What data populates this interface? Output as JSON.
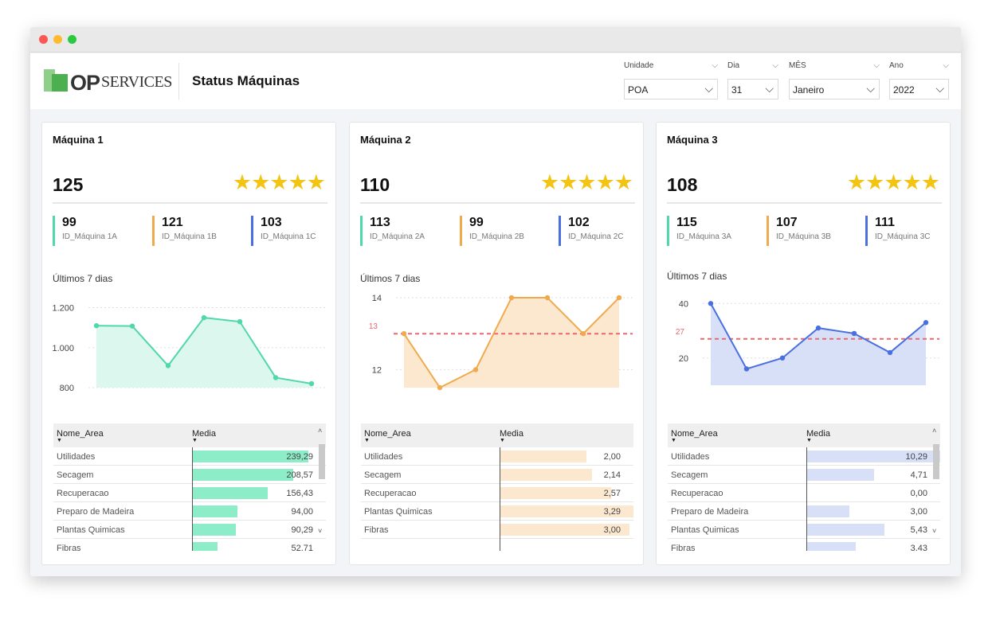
{
  "header": {
    "logo_op": "OP",
    "logo_services": "SERVICES",
    "title": "Status Máquinas"
  },
  "filters": [
    {
      "label": "Unidade",
      "value": "POA"
    },
    {
      "label": "Dia",
      "value": "31"
    },
    {
      "label": "MÊS",
      "value": "Janeiro"
    },
    {
      "label": "Ano",
      "value": "2022"
    }
  ],
  "colors": {
    "green": "#4fd8a8",
    "orange": "#f0aa4e",
    "blue": "#4a6fe0",
    "stars": "#f2c414",
    "target": "#e8686f"
  },
  "cards": [
    {
      "title": "Máquina 1",
      "total": "125",
      "stars": 5,
      "color": "#4fd8a8",
      "kpis": [
        {
          "value": "99",
          "label": "ID_Máquina 1A",
          "color": "#4fd8a8"
        },
        {
          "value": "121",
          "label": "ID_Máquina 1B",
          "color": "#f0aa4e"
        },
        {
          "value": "103",
          "label": "ID_Máquina 1C",
          "color": "#4a6fe0"
        }
      ],
      "chart_title": "Últimos 7 dias",
      "table": {
        "col1": "Nome_Area",
        "col2": "Media",
        "rows": [
          {
            "name": "Utilidades",
            "value": "239,29",
            "num": 239.29
          },
          {
            "name": "Secagem",
            "value": "208,57",
            "num": 208.57
          },
          {
            "name": "Recuperacao",
            "value": "156,43",
            "num": 156.43
          },
          {
            "name": "Preparo de Madeira",
            "value": "94,00",
            "num": 94.0
          },
          {
            "name": "Plantas Quimicas",
            "value": "90,29",
            "num": 90.29
          },
          {
            "name": "Fibras",
            "value": "52,71",
            "num": 52.71
          }
        ]
      }
    },
    {
      "title": "Máquina 2",
      "total": "110",
      "stars": 5,
      "color": "#f0aa4e",
      "kpis": [
        {
          "value": "113",
          "label": "ID_Máquina 2A",
          "color": "#4fd8a8"
        },
        {
          "value": "99",
          "label": "ID_Máquina 2B",
          "color": "#f0aa4e"
        },
        {
          "value": "102",
          "label": "ID_Máquina 2C",
          "color": "#4a6fe0"
        }
      ],
      "chart_title": "Últimos 7 dias",
      "table": {
        "col1": "Nome_Area",
        "col2": "Media",
        "rows": [
          {
            "name": "Utilidades",
            "value": "2,00",
            "num": 2.0
          },
          {
            "name": "Secagem",
            "value": "2,14",
            "num": 2.14
          },
          {
            "name": "Recuperacao",
            "value": "2,57",
            "num": 2.57
          },
          {
            "name": "Plantas Quimicas",
            "value": "3,29",
            "num": 3.29
          },
          {
            "name": "Fibras",
            "value": "3,00",
            "num": 3.0
          }
        ]
      }
    },
    {
      "title": "Máquina 3",
      "total": "108",
      "stars": 5,
      "color": "#4a6fe0",
      "kpis": [
        {
          "value": "115",
          "label": "ID_Máquina 3A",
          "color": "#4fd8a8"
        },
        {
          "value": "107",
          "label": "ID_Máquina 3B",
          "color": "#f0aa4e"
        },
        {
          "value": "111",
          "label": "ID_Máquina 3C",
          "color": "#4a6fe0"
        }
      ],
      "chart_title": "Últimos 7 dias",
      "table": {
        "col1": "Nome_Area",
        "col2": "Media",
        "rows": [
          {
            "name": "Utilidades",
            "value": "10,29",
            "num": 10.29
          },
          {
            "name": "Secagem",
            "value": "4,71",
            "num": 4.71
          },
          {
            "name": "Recuperacao",
            "value": "0,00",
            "num": 0.0
          },
          {
            "name": "Preparo de Madeira",
            "value": "3,00",
            "num": 3.0
          },
          {
            "name": "Plantas Quimicas",
            "value": "5,43",
            "num": 5.43
          },
          {
            "name": "Fibras",
            "value": "3,43",
            "num": 3.43
          }
        ]
      }
    }
  ],
  "chart_data": [
    {
      "type": "area",
      "x": [
        1,
        2,
        3,
        4,
        5,
        6,
        7
      ],
      "values": [
        1110,
        1108,
        910,
        1150,
        1130,
        850,
        820
      ],
      "ylim": [
        800,
        1250
      ],
      "yticks": [
        "800",
        "1.000",
        "1.200"
      ],
      "ytick_values": [
        800,
        1000,
        1200
      ],
      "target": null,
      "color": "#4fd8a8",
      "fill": "#dcf7ee",
      "grid": true
    },
    {
      "type": "area",
      "x": [
        1,
        2,
        3,
        4,
        5,
        6,
        7
      ],
      "values": [
        13,
        11.5,
        12,
        14,
        14,
        13,
        14
      ],
      "ylim": [
        11.5,
        14
      ],
      "yticks": [
        "12",
        "14"
      ],
      "ytick_values": [
        12,
        14
      ],
      "target": 13,
      "target_label": "13",
      "color": "#f0aa4e",
      "fill": "#fce7cf",
      "grid": true
    },
    {
      "type": "area",
      "x": [
        1,
        2,
        3,
        4,
        5,
        6,
        7
      ],
      "values": [
        40,
        16,
        20,
        31,
        29,
        22,
        33
      ],
      "ylim": [
        10,
        43
      ],
      "yticks": [
        "20",
        "40"
      ],
      "ytick_values": [
        20,
        40
      ],
      "target": 27,
      "target_label": "27",
      "color": "#4a6fe0",
      "fill": "#d8e0f8",
      "grid": true
    }
  ]
}
